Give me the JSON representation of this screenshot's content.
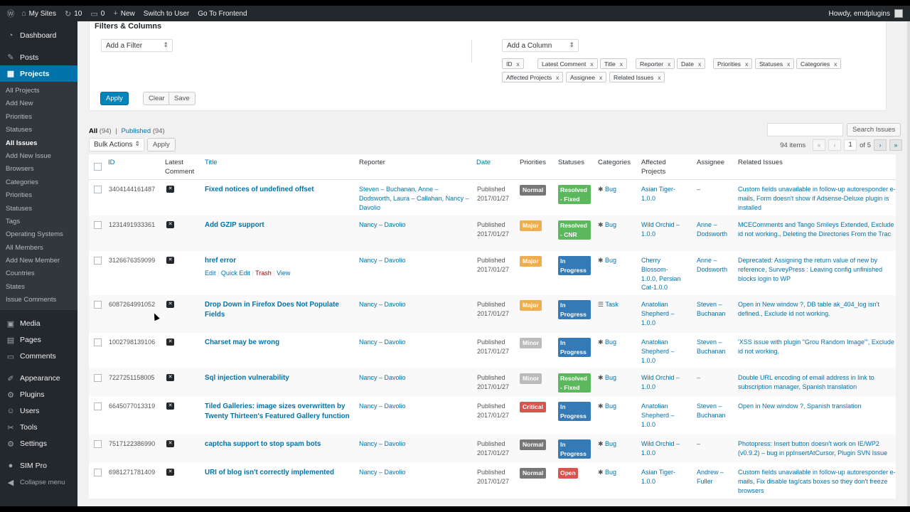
{
  "adminbar": {
    "sites": "My Sites",
    "updates": "10",
    "comments": "0",
    "new": "New",
    "switch": "Switch to User",
    "frontend": "Go To Frontend",
    "howdy": "Howdy, emdplugins"
  },
  "sidebar": {
    "top_items": [
      {
        "label": "Dashboard",
        "icon": "dashboard-icon",
        "glyph": "◔"
      },
      {
        "label": "Posts",
        "icon": "pin-icon",
        "glyph": "✎"
      },
      {
        "label": "Projects",
        "icon": "projects-icon",
        "glyph": "▦"
      }
    ],
    "submenu": [
      "All Projects",
      "Add New",
      "Priorities",
      "Statuses",
      "All Issues",
      "Add New Issue",
      "Browsers",
      "Categories",
      "Priorities",
      "Statuses",
      "Tags",
      "Operating Systems",
      "All Members",
      "Add New Member",
      "Countries",
      "States",
      "Issue Comments"
    ],
    "current_sub": 4,
    "bottom_items": [
      {
        "label": "Media",
        "icon": "media-icon",
        "glyph": "▣"
      },
      {
        "label": "Pages",
        "icon": "pages-icon",
        "glyph": "▤"
      },
      {
        "label": "Comments",
        "icon": "comments-icon",
        "glyph": "▭"
      },
      {
        "label": "Appearance",
        "icon": "appearance-icon",
        "glyph": "✐"
      },
      {
        "label": "Plugins",
        "icon": "plugins-icon",
        "glyph": "⚙"
      },
      {
        "label": "Users",
        "icon": "users-icon",
        "glyph": "☺"
      },
      {
        "label": "Tools",
        "icon": "tools-icon",
        "glyph": "✂"
      },
      {
        "label": "Settings",
        "icon": "settings-icon",
        "glyph": "⚙"
      },
      {
        "label": "SIM Pro",
        "icon": "simpro-icon",
        "glyph": "●"
      },
      {
        "label": "Collapse menu",
        "icon": "collapse-icon",
        "glyph": "◀"
      }
    ]
  },
  "filters": {
    "title": "Filters & Columns",
    "add_filter": "Add a Filter",
    "add_column": "Add a Column",
    "chips": [
      "ID",
      "Latest Comment",
      "Title",
      "Reporter",
      "Date",
      "Priorities",
      "Statuses",
      "Categories",
      "Affected Projects",
      "Assignee",
      "Related Issues"
    ],
    "apply": "Apply",
    "clear": "Clear",
    "save": "Save"
  },
  "views": {
    "all": "All",
    "all_count": "(94)",
    "sep": "|",
    "published": "Published",
    "published_count": "(94)"
  },
  "bulk": {
    "label": "Bulk Actions",
    "apply": "Apply"
  },
  "search": {
    "button": "Search Issues"
  },
  "pagination": {
    "items": "94 items",
    "first": "«",
    "prev": "‹",
    "current": "1",
    "of": "of 5",
    "next": "›",
    "last": "»"
  },
  "table": {
    "headers": [
      "ID",
      "Latest Comment",
      "Title",
      "Reporter",
      "Date",
      "Priorities",
      "Statuses",
      "Categories",
      "Affected Projects",
      "Assignee",
      "Related Issues"
    ],
    "row_actions": {
      "edit": "Edit",
      "quick": "Quick Edit",
      "trash": "Trash",
      "view": "View"
    },
    "rows": [
      {
        "id": "3404144161487",
        "title": "Fixed notices of undefined offset",
        "reporter": "Steven – Buchanan, Anne – Dodsworth, Laura – Callahan, Nancy – Davolio",
        "date1": "Published",
        "date2": "2017/01/27",
        "priority": "Normal",
        "pcolor": "#777777",
        "status": "Resolved - Fixed",
        "scolor": "#5cb85c",
        "category": "Bug",
        "cicon": "bug-icon",
        "project": "Asian Tiger-1.0.0",
        "assignee": "–",
        "related": "Custom fields unavailable in follow-up autoresponder e-mails, Form doesn't show if Adsense-Deluxe plugin is installed"
      },
      {
        "id": "1231491933361",
        "title": "Add GZIP support",
        "reporter": "Nancy – Davolio",
        "date1": "Published",
        "date2": "2017/01/27",
        "priority": "Major",
        "pcolor": "#f0ad4e",
        "status": "Resolved - CNR",
        "scolor": "#5cb85c",
        "category": "Bug",
        "cicon": "bug-icon",
        "project": "Wild Orchid – 1.0.0",
        "assignee": "Anne – Dodsworth",
        "related": "MCEComments and Tango Smileys Extended, Exclude id not working., Deleting the Directories From the Trac"
      },
      {
        "id": "3126676359099",
        "title": "href error",
        "reporter": "Nancy – Davolio",
        "date1": "Published",
        "date2": "2017/01/27",
        "priority": "Major",
        "pcolor": "#f0ad4e",
        "status": "In Progress",
        "scolor": "#337ab7",
        "category": "Bug",
        "cicon": "bug-icon",
        "project": "Cherry Blossom-1.0.0, Persian Cat-1.0.0",
        "assignee": "Anne – Dodsworth",
        "related": "Deprecated: Assigning the return value of new by reference, SurveyPress : Leaving config unfinished blocks login to WP"
      },
      {
        "id": "6087264991052",
        "title": "Drop Down in Firefox Does Not Populate Fields",
        "reporter": "Nancy – Davolio",
        "date1": "Published",
        "date2": "2017/01/27",
        "priority": "Major",
        "pcolor": "#f0ad4e",
        "status": "In Progress",
        "scolor": "#337ab7",
        "category": "Task",
        "cicon": "task-icon",
        "project": "Anatolian Shepherd – 1.0.0",
        "assignee": "Steven – Buchanan",
        "related": "Open in New window ?, DB table ak_404_log isn't defined., Exclude id not working."
      },
      {
        "id": "1002798139106",
        "title": "Charset may be wrong",
        "reporter": "Nancy – Davolio",
        "date1": "Published",
        "date2": "2017/01/27",
        "priority": "Minor",
        "pcolor": "#bbbbbb",
        "status": "In Progress",
        "scolor": "#337ab7",
        "category": "Bug",
        "cicon": "bug-icon",
        "project": "Anatolian Shepherd – 1.0.0",
        "assignee": "Steven – Buchanan",
        "related": "'XSS issue with plugin \"Grou Random Image\"', Exclude id not working."
      },
      {
        "id": "7227251158005",
        "title": "Sql injection vulnerability",
        "reporter": "Nancy – Davolio",
        "date1": "Published",
        "date2": "2017/01/27",
        "priority": "Minor",
        "pcolor": "#bbbbbb",
        "status": "Resolved - Fixed",
        "scolor": "#5cb85c",
        "category": "Bug",
        "cicon": "bug-icon",
        "project": "Wild Orchid – 1.0.0",
        "assignee": "–",
        "related": "Double URL encoding of email address in link to subscription manager, Spanish translation"
      },
      {
        "id": "6645077013319",
        "title": "Tiled Galleries: image sizes overwritten by Twenty Thirteen's Featured Gallery function",
        "reporter": "Nancy – Davolio",
        "date1": "Published",
        "date2": "2017/01/27",
        "priority": "Critical",
        "pcolor": "#d9534f",
        "status": "In Progress",
        "scolor": "#337ab7",
        "category": "Bug",
        "cicon": "bug-icon",
        "project": "Anatolian Shepherd – 1.0.0",
        "assignee": "Steven – Buchanan",
        "related": "Open in New window ?, Spanish translation"
      },
      {
        "id": "7517122386990",
        "title": "captcha support to stop spam bots",
        "reporter": "Nancy – Davolio",
        "date1": "Published",
        "date2": "2017/01/27",
        "priority": "Normal",
        "pcolor": "#777777",
        "status": "In Progress",
        "scolor": "#337ab7",
        "category": "Bug",
        "cicon": "bug-icon",
        "project": "Wild Orchid – 1.0.0",
        "assignee": "–",
        "related": "Photopress: Insert button doesn't work on IE/WP2 (v0.9.2) – bug in ppInsertAtCursor, Plugin SVN Issue"
      },
      {
        "id": "6981271781409",
        "title": "URI of blog isn't correctly implemented",
        "reporter": "Nancy – Davolio",
        "date1": "Published",
        "date2": "2017/01/27",
        "priority": "Normal",
        "pcolor": "#777777",
        "status": "Open",
        "scolor": "#d9534f",
        "category": "Bug",
        "cicon": "bug-icon",
        "project": "Asian Tiger-1.0.0",
        "assignee": "Andrew – Fuller",
        "related": "Custom fields unavailable in follow-up autoresponder e-mails, Fix disable tag/cats boxes so they don't freeze browsers"
      }
    ]
  }
}
